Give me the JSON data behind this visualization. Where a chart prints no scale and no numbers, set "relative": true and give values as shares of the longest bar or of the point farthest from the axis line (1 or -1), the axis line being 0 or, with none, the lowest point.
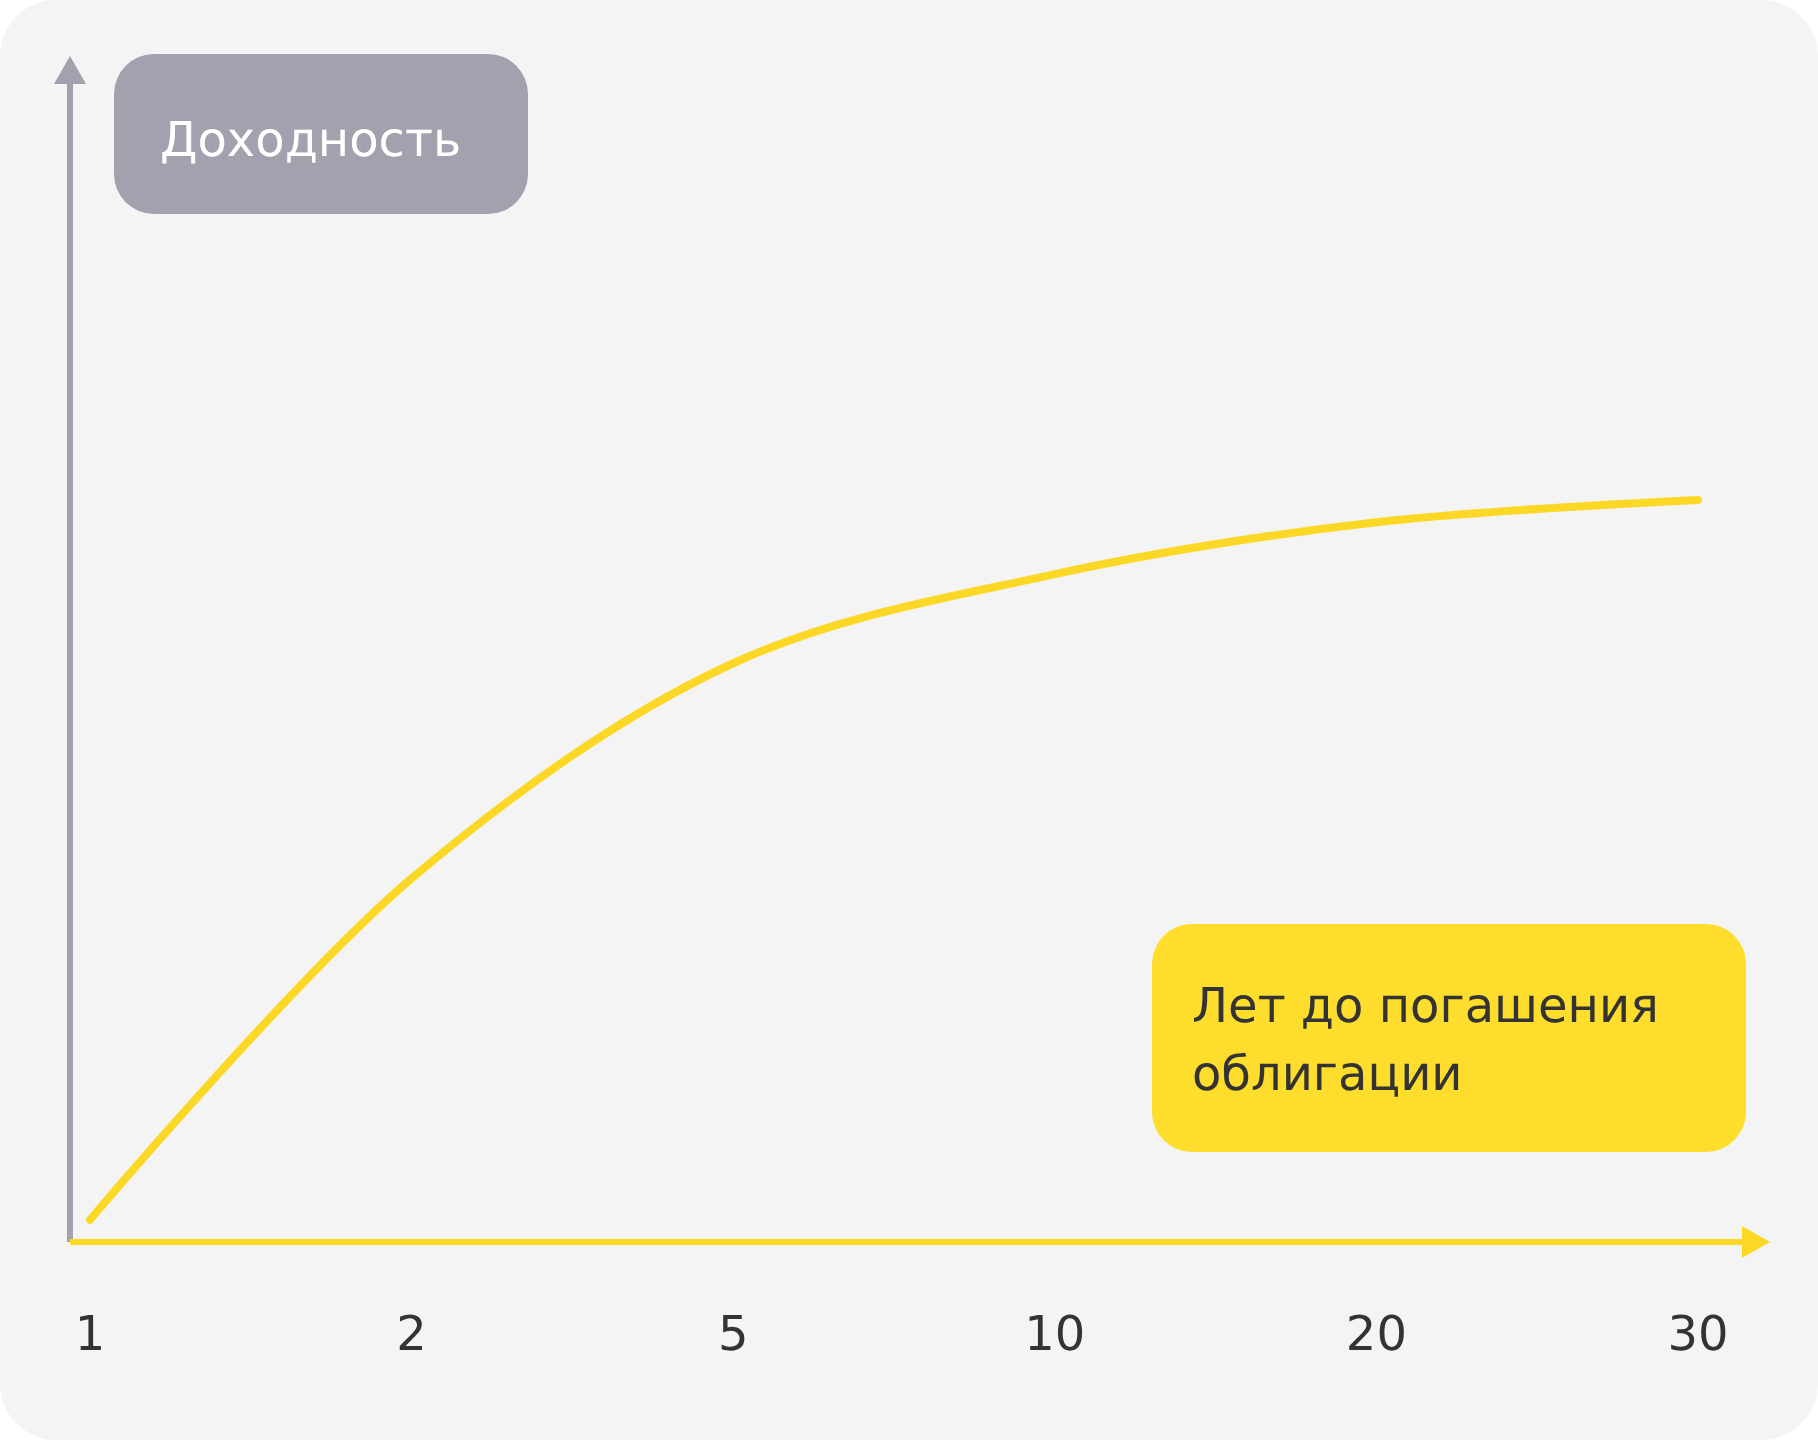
{
  "chart_data": {
    "type": "line",
    "relative": true,
    "annotations": [
      "Доходность"
    ],
    "xlabel": "Лет до погашения облигации",
    "categories": [
      "1",
      "2",
      "5",
      "10",
      "20",
      "30"
    ],
    "series": [
      {
        "color": "#fcd826",
        "values": [
          0.03,
          0.49,
          0.78,
          0.9,
          0.97,
          1
        ]
      }
    ],
    "grid": false,
    "marker": "none",
    "line_style": "solid"
  }
}
